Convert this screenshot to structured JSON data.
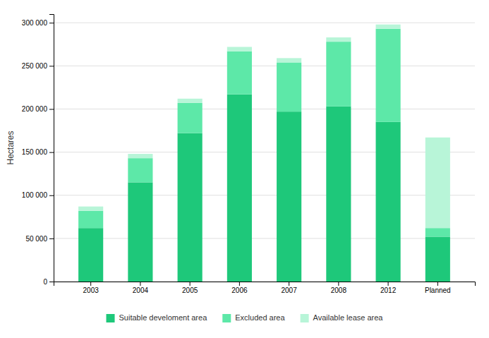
{
  "chart_data": {
    "type": "bar",
    "stacked": true,
    "ylabel": "Hectares",
    "categories": [
      "2003",
      "2004",
      "2005",
      "2006",
      "2007",
      "2008",
      "2012",
      "Planned"
    ],
    "series": [
      {
        "name": "Suitable develoment area",
        "color": "#1ec87a",
        "values": [
          62000,
          115000,
          172000,
          217000,
          197000,
          203000,
          185000,
          52000
        ]
      },
      {
        "name": "Excluded area",
        "color": "#5de8a8",
        "values": [
          20000,
          28000,
          35000,
          50000,
          57000,
          75000,
          108000,
          10000
        ]
      },
      {
        "name": "Available lease area",
        "color": "#b8f5d8",
        "values": [
          5000,
          5000,
          5000,
          5000,
          5000,
          5000,
          5000,
          105000
        ]
      }
    ],
    "ylim": [
      0,
      310000
    ],
    "yticks": [
      0,
      {
        "value": 50000,
        "label": "50 000"
      },
      {
        "value": 100000,
        "label": "100 000"
      },
      {
        "value": 150000,
        "label": "150 000"
      },
      {
        "value": 200000,
        "label": "200 000"
      },
      {
        "value": 250000,
        "label": "250 000"
      },
      {
        "value": 300000,
        "label": "300 000"
      }
    ],
    "grid": true,
    "legend": "bottom"
  }
}
